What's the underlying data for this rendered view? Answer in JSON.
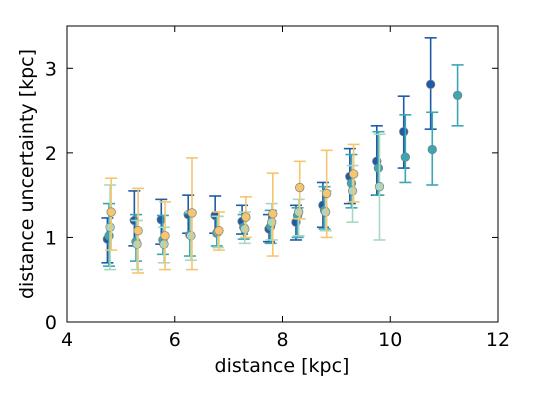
{
  "chart_data": {
    "type": "scatter",
    "title": "",
    "xlabel": "distance [kpc]",
    "ylabel": "distance uncertainty [kpc]",
    "xlim": [
      4,
      12
    ],
    "ylim": [
      0,
      3.5
    ],
    "xticks": [
      "4",
      "6",
      "8",
      "10",
      "12"
    ],
    "yticks": [
      "0",
      "1",
      "2",
      "3"
    ],
    "grid": false,
    "legend": false,
    "series": [
      {
        "color": "#1f5ba6",
        "points": [
          {
            "x": 4.75,
            "y": 0.98,
            "lo": 0.7,
            "hi": 1.23
          },
          {
            "x": 5.25,
            "y": 1.2,
            "lo": 0.9,
            "hi": 1.55
          },
          {
            "x": 5.75,
            "y": 1.21,
            "lo": 0.92,
            "hi": 1.45
          },
          {
            "x": 6.25,
            "y": 1.27,
            "lo": 1.05,
            "hi": 1.5
          },
          {
            "x": 6.75,
            "y": 1.26,
            "lo": 1.05,
            "hi": 1.49
          },
          {
            "x": 7.25,
            "y": 1.19,
            "lo": 1.04,
            "hi": 1.38
          },
          {
            "x": 7.75,
            "y": 1.1,
            "lo": 0.95,
            "hi": 1.27
          },
          {
            "x": 8.25,
            "y": 1.18,
            "lo": 0.97,
            "hi": 1.38
          },
          {
            "x": 8.75,
            "y": 1.38,
            "lo": 1.12,
            "hi": 1.65
          },
          {
            "x": 9.25,
            "y": 1.72,
            "lo": 1.4,
            "hi": 2.05
          },
          {
            "x": 9.75,
            "y": 1.9,
            "lo": 1.5,
            "hi": 2.32
          },
          {
            "x": 10.25,
            "y": 2.25,
            "lo": 1.82,
            "hi": 2.67
          },
          {
            "x": 10.75,
            "y": 2.81,
            "lo": 2.28,
            "hi": 3.36
          }
        ]
      },
      {
        "color": "#3aa7b2",
        "points": [
          {
            "x": 4.78,
            "y": 1.02,
            "lo": 0.66,
            "hi": 1.4
          },
          {
            "x": 5.28,
            "y": 0.95,
            "lo": 0.72,
            "hi": 1.27
          },
          {
            "x": 5.78,
            "y": 0.97,
            "lo": 0.8,
            "hi": 1.26
          },
          {
            "x": 6.28,
            "y": 1.03,
            "lo": 0.78,
            "hi": 1.28
          },
          {
            "x": 6.78,
            "y": 1.05,
            "lo": 0.9,
            "hi": 1.25
          },
          {
            "x": 7.28,
            "y": 1.12,
            "lo": 0.98,
            "hi": 1.27
          },
          {
            "x": 7.78,
            "y": 1.13,
            "lo": 0.93,
            "hi": 1.32
          },
          {
            "x": 8.28,
            "y": 1.26,
            "lo": 1.0,
            "hi": 1.35
          },
          {
            "x": 8.78,
            "y": 1.32,
            "lo": 1.1,
            "hi": 1.6
          },
          {
            "x": 9.28,
            "y": 1.64,
            "lo": 1.35,
            "hi": 1.98
          },
          {
            "x": 9.78,
            "y": 1.82,
            "lo": 1.5,
            "hi": 2.25
          },
          {
            "x": 10.28,
            "y": 1.95,
            "lo": 1.65,
            "hi": 2.45
          },
          {
            "x": 10.78,
            "y": 2.04,
            "lo": 1.62,
            "hi": 2.48
          },
          {
            "x": 11.25,
            "y": 2.68,
            "lo": 2.32,
            "hi": 3.04
          }
        ]
      },
      {
        "color": "#a8d8c0",
        "points": [
          {
            "x": 4.8,
            "y": 1.12,
            "lo": 0.62,
            "hi": 1.62
          },
          {
            "x": 5.3,
            "y": 0.92,
            "lo": 0.62,
            "hi": 1.2
          },
          {
            "x": 5.8,
            "y": 0.92,
            "lo": 0.7,
            "hi": 1.12
          },
          {
            "x": 6.3,
            "y": 1.02,
            "lo": 0.73,
            "hi": 1.3
          },
          {
            "x": 6.8,
            "y": 1.07,
            "lo": 0.88,
            "hi": 1.25
          },
          {
            "x": 7.3,
            "y": 1.1,
            "lo": 0.93,
            "hi": 1.3
          },
          {
            "x": 7.8,
            "y": 1.18,
            "lo": 0.97,
            "hi": 1.4
          },
          {
            "x": 8.3,
            "y": 1.3,
            "lo": 1.02,
            "hi": 1.45
          },
          {
            "x": 8.8,
            "y": 1.3,
            "lo": 1.08,
            "hi": 1.55
          },
          {
            "x": 9.3,
            "y": 1.55,
            "lo": 1.18,
            "hi": 1.85
          },
          {
            "x": 9.8,
            "y": 1.6,
            "lo": 0.97,
            "hi": 2.22
          }
        ]
      },
      {
        "color": "#f5c66e",
        "points": [
          {
            "x": 4.82,
            "y": 1.3,
            "lo": 0.85,
            "hi": 1.7
          },
          {
            "x": 5.32,
            "y": 1.08,
            "lo": 0.58,
            "hi": 1.58
          },
          {
            "x": 5.82,
            "y": 1.02,
            "lo": 0.62,
            "hi": 1.42
          },
          {
            "x": 6.32,
            "y": 1.29,
            "lo": 0.62,
            "hi": 1.94
          },
          {
            "x": 6.82,
            "y": 1.08,
            "lo": 0.85,
            "hi": 1.3
          },
          {
            "x": 7.32,
            "y": 1.24,
            "lo": 1.0,
            "hi": 1.48
          },
          {
            "x": 7.82,
            "y": 1.28,
            "lo": 0.78,
            "hi": 1.76
          },
          {
            "x": 8.32,
            "y": 1.59,
            "lo": 1.22,
            "hi": 1.9
          },
          {
            "x": 8.82,
            "y": 1.52,
            "lo": 1.0,
            "hi": 2.03
          },
          {
            "x": 9.32,
            "y": 1.75,
            "lo": 1.42,
            "hi": 2.1
          }
        ]
      }
    ]
  }
}
